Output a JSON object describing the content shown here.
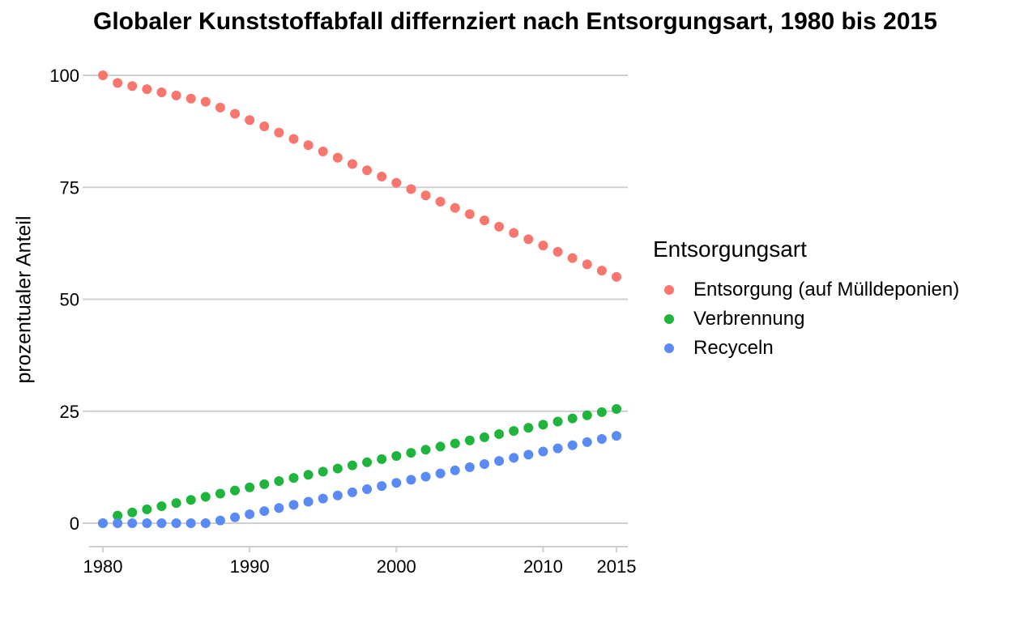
{
  "chart_data": {
    "type": "scatter",
    "title": "Globaler Kunststoffabfall differnziert nach Entsorgungsart, 1980 bis 2015",
    "xlabel": "",
    "ylabel": "prozentualer Anteil",
    "xlim": [
      1980,
      2015
    ],
    "ylim": [
      -5,
      105
    ],
    "x_ticks": [
      1980,
      1990,
      2000,
      2010,
      2015
    ],
    "y_ticks": [
      0,
      25,
      50,
      75,
      100
    ],
    "grid": "horizontal",
    "legend_title": "Entsorgungsart",
    "legend_position": "right",
    "x": [
      1980,
      1981,
      1982,
      1983,
      1984,
      1985,
      1986,
      1987,
      1988,
      1989,
      1990,
      1991,
      1992,
      1993,
      1994,
      1995,
      1996,
      1997,
      1998,
      1999,
      2000,
      2001,
      2002,
      2003,
      2004,
      2005,
      2006,
      2007,
      2008,
      2009,
      2010,
      2011,
      2012,
      2013,
      2014,
      2015
    ],
    "series": [
      {
        "name": "Entsorgung (auf Mülldeponien)",
        "color": "#F8766D",
        "values": [
          100,
          98.3,
          97.6,
          96.9,
          96.2,
          95.5,
          94.8,
          94.1,
          92.8,
          91.4,
          90,
          88.6,
          87.2,
          85.8,
          84.4,
          83,
          81.6,
          80.2,
          78.8,
          77.4,
          76,
          74.6,
          73.2,
          71.8,
          70.4,
          69,
          67.6,
          66.2,
          64.8,
          63.4,
          62,
          60.6,
          59.2,
          57.8,
          56.4,
          55
        ]
      },
      {
        "name": "Verbrennung",
        "color": "#1FB43B",
        "values": [
          0,
          1.7,
          2.4,
          3.1,
          3.8,
          4.5,
          5.2,
          5.9,
          6.6,
          7.3,
          8,
          8.7,
          9.4,
          10.1,
          10.8,
          11.5,
          12.2,
          12.9,
          13.6,
          14.3,
          15,
          15.7,
          16.4,
          17.1,
          17.8,
          18.5,
          19.2,
          19.9,
          20.6,
          21.3,
          22,
          22.7,
          23.4,
          24.1,
          24.8,
          25.5
        ]
      },
      {
        "name": "Recyceln",
        "color": "#5A8BF5",
        "values": [
          0,
          0,
          0,
          0,
          0,
          0,
          0,
          0,
          0.6,
          1.3,
          2,
          2.7,
          3.4,
          4.1,
          4.8,
          5.5,
          6.2,
          6.9,
          7.6,
          8.3,
          9,
          9.7,
          10.4,
          11.1,
          11.8,
          12.5,
          13.2,
          13.9,
          14.6,
          15.3,
          16,
          16.7,
          17.4,
          18.1,
          18.8,
          19.5
        ]
      }
    ]
  }
}
